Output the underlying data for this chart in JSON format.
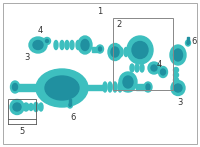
{
  "bg_color": "#ffffff",
  "border_color": "#aaaaaa",
  "pc": "#3dbfbf",
  "pcd": "#2090a0",
  "title": "1",
  "label2": "2",
  "label3": "3",
  "label4": "4",
  "label5": "5",
  "label6_l": "6",
  "label6_r": "6",
  "fig_width": 2.0,
  "fig_height": 1.47,
  "dpi": 100
}
